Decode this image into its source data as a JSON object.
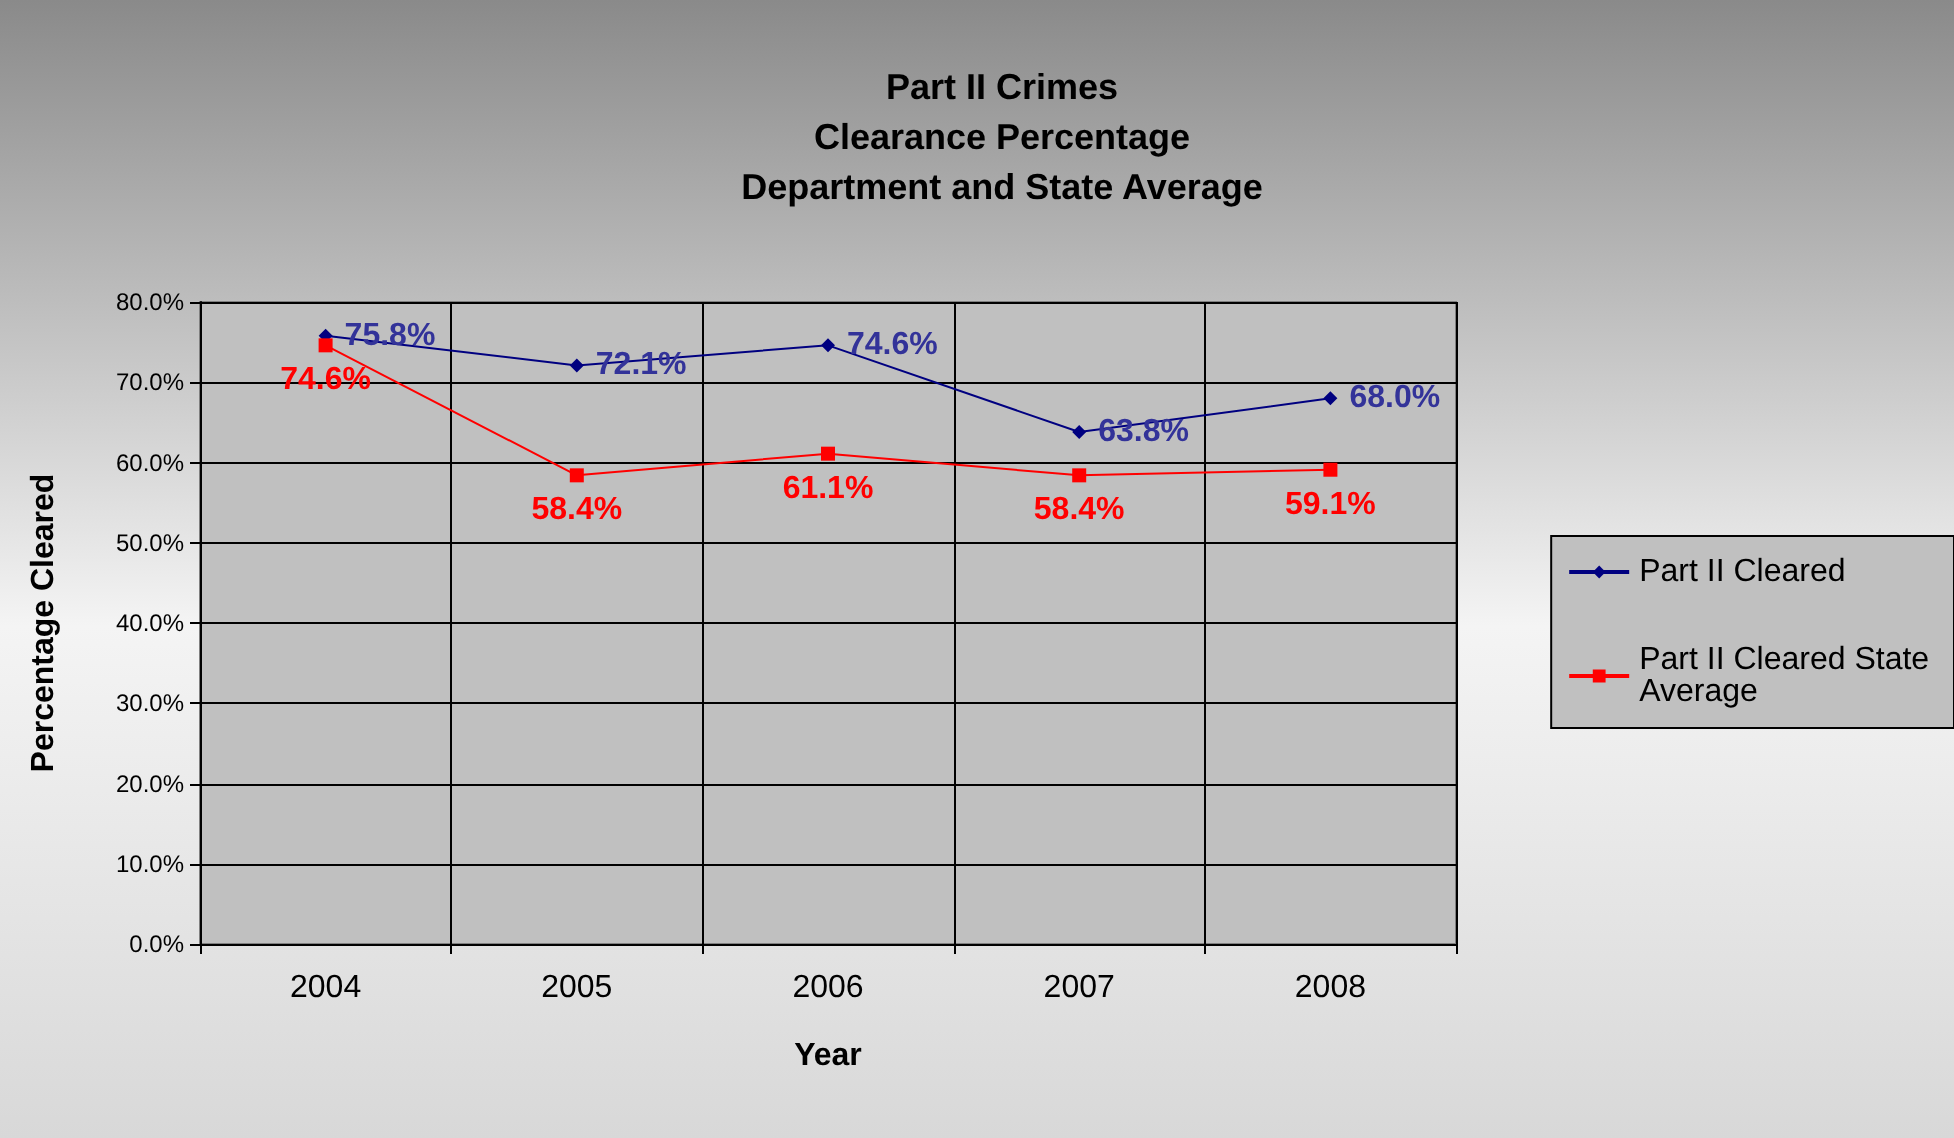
{
  "chart_data": {
    "type": "line",
    "title": "Part II Crimes\nClearance Percentage\nDepartment and State Average",
    "xlabel": "Year",
    "ylabel": "Percentage Cleared",
    "categories": [
      "2004",
      "2005",
      "2006",
      "2007",
      "2008"
    ],
    "series": [
      {
        "name": "Part II Cleared",
        "color": "#000080",
        "marker": "diamond",
        "values": [
          75.8,
          72.1,
          74.6,
          63.8,
          68.0
        ],
        "value_labels": [
          "75.8%",
          "72.1%",
          "74.6%",
          "63.8%",
          "68.0%"
        ]
      },
      {
        "name": "Part II Cleared State Average",
        "color": "#ff0000",
        "marker": "square",
        "values": [
          74.6,
          58.4,
          61.1,
          58.4,
          59.1
        ],
        "value_labels": [
          "74.6%",
          "58.4%",
          "61.1%",
          "58.4%",
          "59.1%"
        ]
      }
    ],
    "ylim": [
      0,
      80
    ],
    "yticks": [
      {
        "value": 0,
        "label": "0.0%"
      },
      {
        "value": 10,
        "label": "10.0%"
      },
      {
        "value": 20,
        "label": "20.0%"
      },
      {
        "value": 30,
        "label": "30.0%"
      },
      {
        "value": 40,
        "label": "40.0%"
      },
      {
        "value": 50,
        "label": "50.0%"
      },
      {
        "value": 60,
        "label": "60.0%"
      },
      {
        "value": 70,
        "label": "70.0%"
      },
      {
        "value": 80,
        "label": "80.0%"
      }
    ],
    "grid": true,
    "legend": "right",
    "line_style": "solid"
  }
}
